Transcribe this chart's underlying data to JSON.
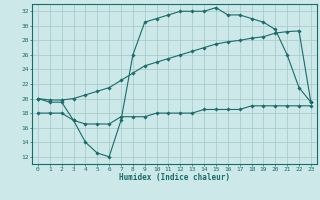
{
  "bg_color": "#cce8e8",
  "grid_color": "#aacccc",
  "line_color": "#1a6b6b",
  "xlabel": "Humidex (Indice chaleur)",
  "xlim": [
    -0.5,
    23.5
  ],
  "ylim": [
    11,
    33
  ],
  "yticks": [
    12,
    14,
    16,
    18,
    20,
    22,
    24,
    26,
    28,
    30,
    32
  ],
  "xticks": [
    0,
    1,
    2,
    3,
    4,
    5,
    6,
    7,
    8,
    9,
    10,
    11,
    12,
    13,
    14,
    15,
    16,
    17,
    18,
    19,
    20,
    21,
    22,
    23
  ],
  "line1_x": [
    0,
    1,
    2,
    3,
    4,
    5,
    6,
    7,
    8,
    9,
    10,
    11,
    12,
    13,
    14,
    15,
    16,
    17,
    18,
    19,
    20,
    21,
    22,
    23
  ],
  "line1_y": [
    20.0,
    19.5,
    19.5,
    17.0,
    14.0,
    12.5,
    12.0,
    17.0,
    26.0,
    30.5,
    31.0,
    31.5,
    32.0,
    32.0,
    32.0,
    32.5,
    31.5,
    31.5,
    31.0,
    30.5,
    29.5,
    26.0,
    21.5,
    19.5
  ],
  "line2_x": [
    0,
    1,
    2,
    3,
    4,
    5,
    6,
    7,
    8,
    9,
    10,
    11,
    12,
    13,
    14,
    15,
    16,
    17,
    18,
    19,
    20,
    21,
    22,
    23
  ],
  "line2_y": [
    20.0,
    19.8,
    19.8,
    20.0,
    20.5,
    21.0,
    21.5,
    22.5,
    23.5,
    24.5,
    25.0,
    25.5,
    26.0,
    26.5,
    27.0,
    27.5,
    27.8,
    28.0,
    28.3,
    28.5,
    29.0,
    29.2,
    29.3,
    19.5
  ],
  "line3_x": [
    0,
    1,
    2,
    3,
    4,
    5,
    6,
    7,
    8,
    9,
    10,
    11,
    12,
    13,
    14,
    15,
    16,
    17,
    18,
    19,
    20,
    21,
    22,
    23
  ],
  "line3_y": [
    18.0,
    18.0,
    18.0,
    17.0,
    16.5,
    16.5,
    16.5,
    17.5,
    17.5,
    17.5,
    18.0,
    18.0,
    18.0,
    18.0,
    18.5,
    18.5,
    18.5,
    18.5,
    19.0,
    19.0,
    19.0,
    19.0,
    19.0,
    19.0
  ]
}
